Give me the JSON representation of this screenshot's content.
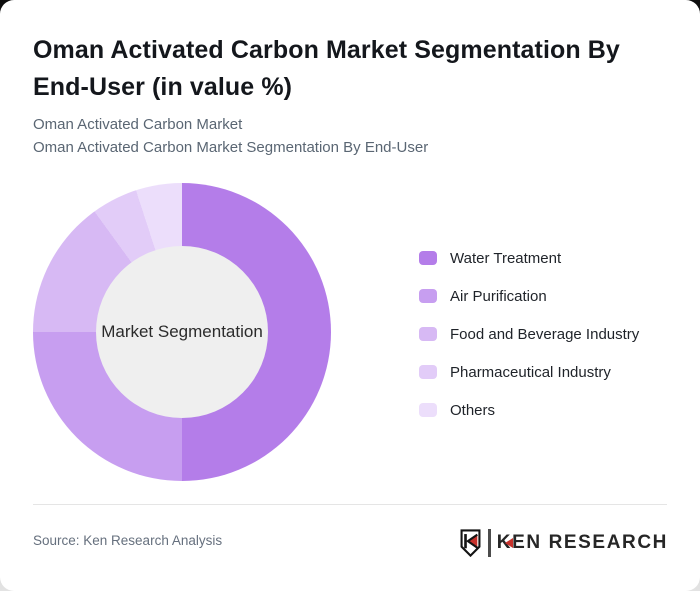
{
  "header": {
    "title_full": "Oman Activated Carbon Market Segmentation By End-User (in value %)",
    "title_line1": "Oman Activated Carbon Market Segmentation By",
    "title_line2": "End-User (in value %)",
    "subtitle_line1": "Oman Activated Carbon Market",
    "subtitle_line2": "Oman Activated Carbon Market Segmentation By End-User"
  },
  "chart_data": {
    "type": "pie",
    "donut": true,
    "title": "Oman Activated Carbon Market Segmentation By End-User (in value %)",
    "center_label": "Market Segmentation",
    "categories": [
      "Water Treatment",
      "Air Purification",
      "Food and Beverage Industry",
      "Pharmaceutical Industry",
      "Others"
    ],
    "values": [
      50,
      25,
      15,
      5,
      5
    ],
    "unit": "value %",
    "colors": [
      "#b47de9",
      "#c79ef0",
      "#d7b9f4",
      "#e2ccf8",
      "#ecdefb"
    ],
    "hole_color": "#efefef",
    "start_angle_deg": 0,
    "direction": "clockwise",
    "legend_position": "right",
    "data_labels_shown": false
  },
  "footer": {
    "source": "Source: Ken Research Analysis",
    "logo_first_letter": "K",
    "logo_rest": "EN RESEARCH",
    "logo_accent_color": "#c6312b",
    "logo_text_color": "#262626"
  },
  "icons": {
    "logo_shield": "shield-with-K-and-red-triangle"
  }
}
